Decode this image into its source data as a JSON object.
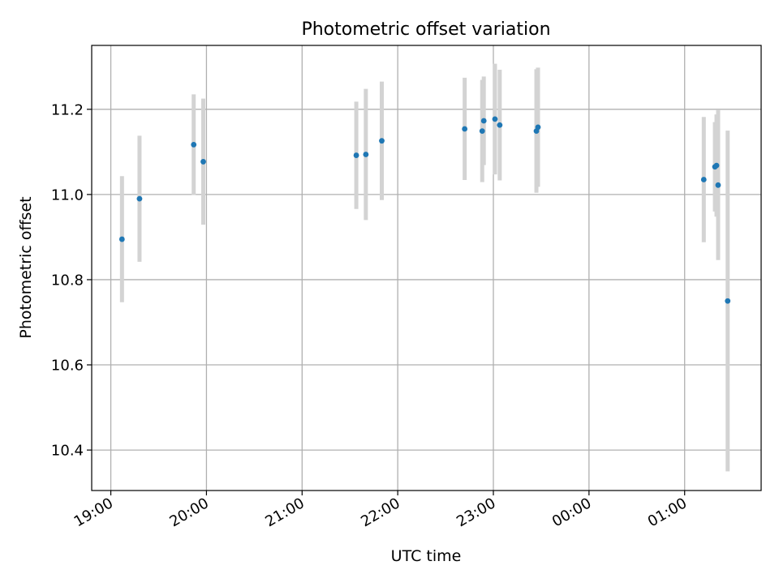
{
  "chart_data": {
    "type": "scatter",
    "title": "Photometric offset variation",
    "xlabel": "UTC time",
    "ylabel": "Photometric offset",
    "x_tick_labels": [
      "19:00",
      "20:00",
      "21:00",
      "22:00",
      "23:00",
      "00:00",
      "01:00"
    ],
    "y_ticks": [
      10.4,
      10.6,
      10.8,
      11.0,
      11.2
    ],
    "y_tick_labels": [
      "10.4",
      "10.6",
      "10.8",
      "11.0",
      "11.2"
    ],
    "xlim": [
      "18:48",
      "01:48"
    ],
    "ylim": [
      10.305,
      11.35
    ],
    "grid": true,
    "point_color": "#1f77b4",
    "errorbar_color": "#d3d3d3",
    "points": [
      {
        "x": "19:07",
        "y": 10.895,
        "err": 0.148
      },
      {
        "x": "19:18",
        "y": 10.99,
        "err": 0.148
      },
      {
        "x": "19:52",
        "y": 11.117,
        "err": 0.118
      },
      {
        "x": "19:58",
        "y": 11.077,
        "err": 0.148
      },
      {
        "x": "21:34",
        "y": 11.092,
        "err": 0.126
      },
      {
        "x": "21:40",
        "y": 11.094,
        "err": 0.154
      },
      {
        "x": "21:50",
        "y": 11.126,
        "err": 0.139
      },
      {
        "x": "22:42",
        "y": 11.154,
        "err": 0.12
      },
      {
        "x": "22:53",
        "y": 11.149,
        "err": 0.12
      },
      {
        "x": "22:54",
        "y": 11.173,
        "err": 0.104
      },
      {
        "x": "23:01",
        "y": 11.177,
        "err": 0.13
      },
      {
        "x": "23:04",
        "y": 11.163,
        "err": 0.13
      },
      {
        "x": "23:27",
        "y": 11.149,
        "err": 0.145
      },
      {
        "x": "23:28",
        "y": 11.158,
        "err": 0.14
      },
      {
        "x": "01:12",
        "y": 11.035,
        "err": 0.147
      },
      {
        "x": "01:19",
        "y": 11.065,
        "err": 0.105
      },
      {
        "x": "01:20",
        "y": 11.068,
        "err": 0.12
      },
      {
        "x": "01:21",
        "y": 11.022,
        "err": 0.176
      },
      {
        "x": "01:27",
        "y": 10.75,
        "err": 0.4
      }
    ]
  }
}
